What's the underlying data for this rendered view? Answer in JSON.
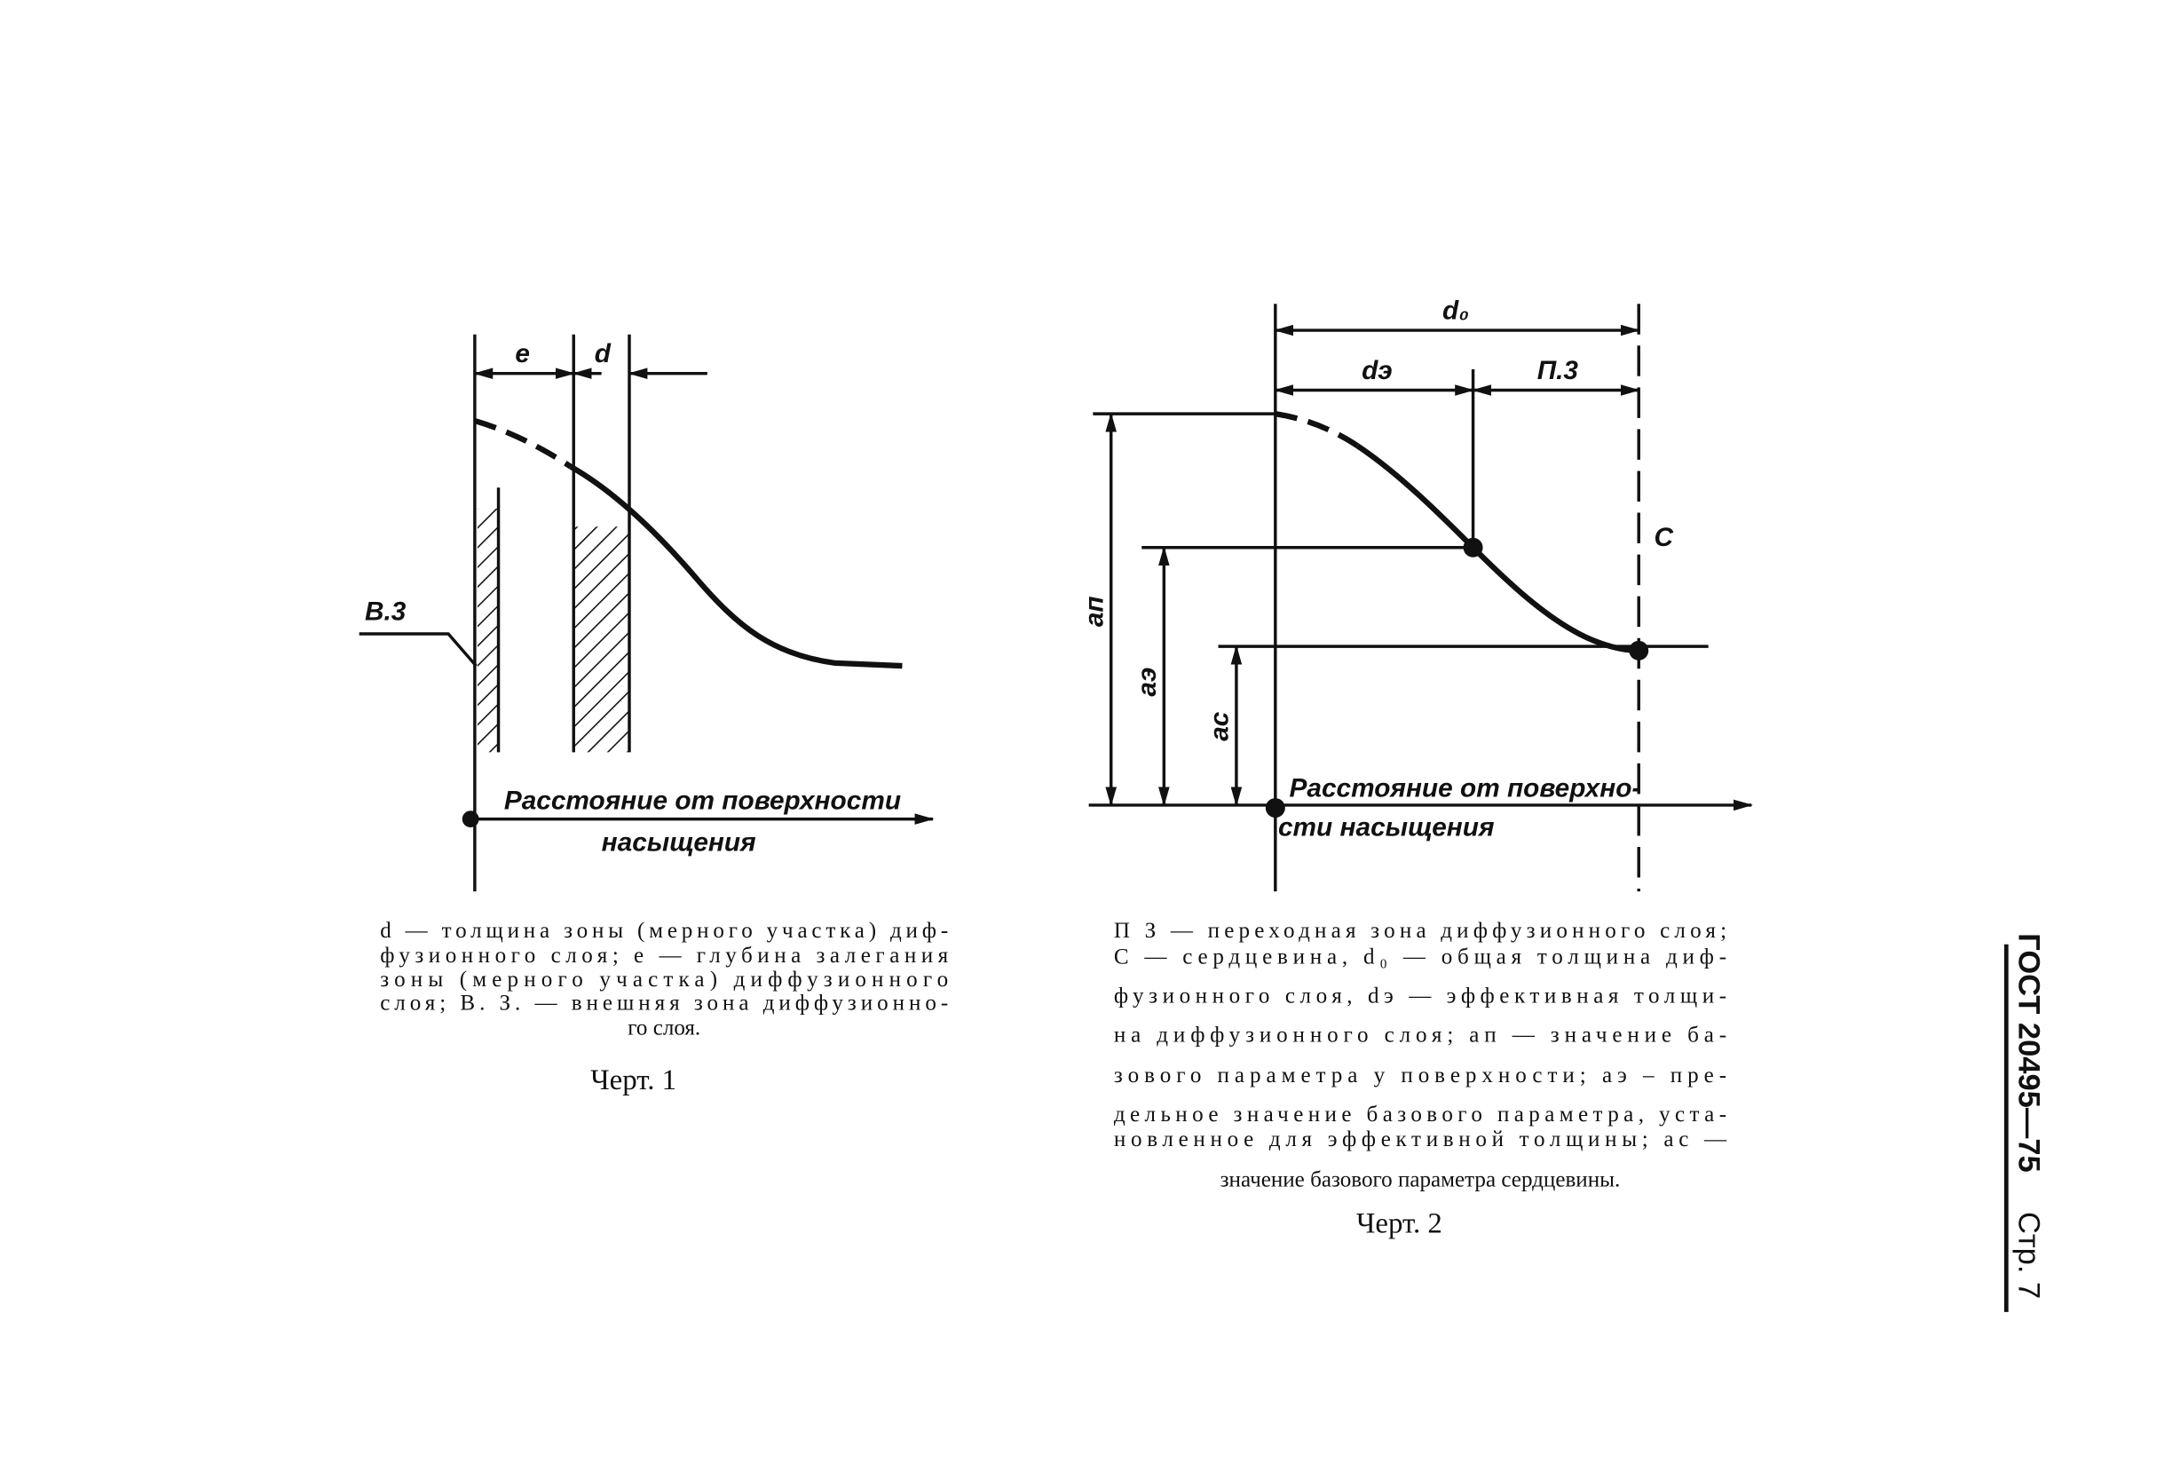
{
  "figure_1": {
    "labels": {
      "e": "e",
      "d": "d",
      "outer_zone": "В.3",
      "axis": [
        "Расстояние от поверхности",
        "насыщения"
      ]
    },
    "caption_lines": [
      "d — толщина зоны (мерного участка) диф-",
      "фузионного слоя; e — глубина залегания",
      "зоны (мерного участка) диффузионного",
      "слоя; В. З. — внешняя зона диффузионно-",
      "го слоя."
    ],
    "title": "Черт. 1"
  },
  "figure_2": {
    "labels": {
      "d0": "d₀",
      "de": "dэ",
      "transition": "П.3",
      "core": "С",
      "a_p": "aп",
      "a_e": "aэ",
      "a_c": "aс",
      "axis": [
        "Расстояние от поверхно-",
        "сти насыщения"
      ]
    },
    "caption_lines": [
      "П З — переходная зона диффузионного слоя;",
      "С — сердцевина, d₀ — общая толщина диф-",
      "фузионного слоя, dэ — эффективная толщи-",
      "на диффузионного слоя; aп — значение ба-",
      "зового параметра у поверхности; aэ – пре-",
      "дельное значение базового параметра, уста-",
      "новленное для эффективной толщины; aс —",
      "значение базового параметра сердцевины."
    ],
    "title": "Черт. 2"
  },
  "header": {
    "standard": "ГОСТ 20495—75",
    "page": "Стр. 7"
  }
}
